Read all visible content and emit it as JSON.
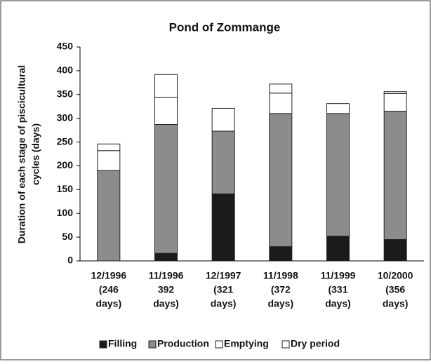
{
  "chart_data": {
    "type": "stacked_bar",
    "title": "Pond of Zommange",
    "ylabel": [
      "Duration of each stage of piscicultural",
      "cycles (days)"
    ],
    "categories": [
      [
        "12/1996",
        "(246",
        "days)"
      ],
      [
        "11/1996",
        "392",
        "days)"
      ],
      [
        "12/1997",
        "(321",
        "days)"
      ],
      [
        "11/1998",
        "(372",
        "days)"
      ],
      [
        "11/1999",
        "(331",
        "days)"
      ],
      [
        "10/2000",
        "(356",
        "days)"
      ]
    ],
    "series": [
      {
        "name": "Filling",
        "color": "#1a1a1a",
        "values": [
          0,
          16,
          141,
          30,
          52,
          45
        ]
      },
      {
        "name": "Production",
        "color": "#8c8c8c",
        "values": [
          190,
          271,
          132,
          280,
          258,
          270
        ]
      },
      {
        "name": "Emptying",
        "color": "#ffffff",
        "values": [
          42,
          57,
          48,
          43,
          21,
          37
        ]
      },
      {
        "name": "Dry period",
        "color": "#ffffff",
        "values": [
          14,
          48,
          0,
          19,
          0,
          4
        ]
      }
    ],
    "ylim": [
      0,
      450
    ],
    "yticks": [
      0,
      50,
      100,
      150,
      200,
      250,
      300,
      350,
      400,
      450
    ],
    "legend": "bottom"
  }
}
